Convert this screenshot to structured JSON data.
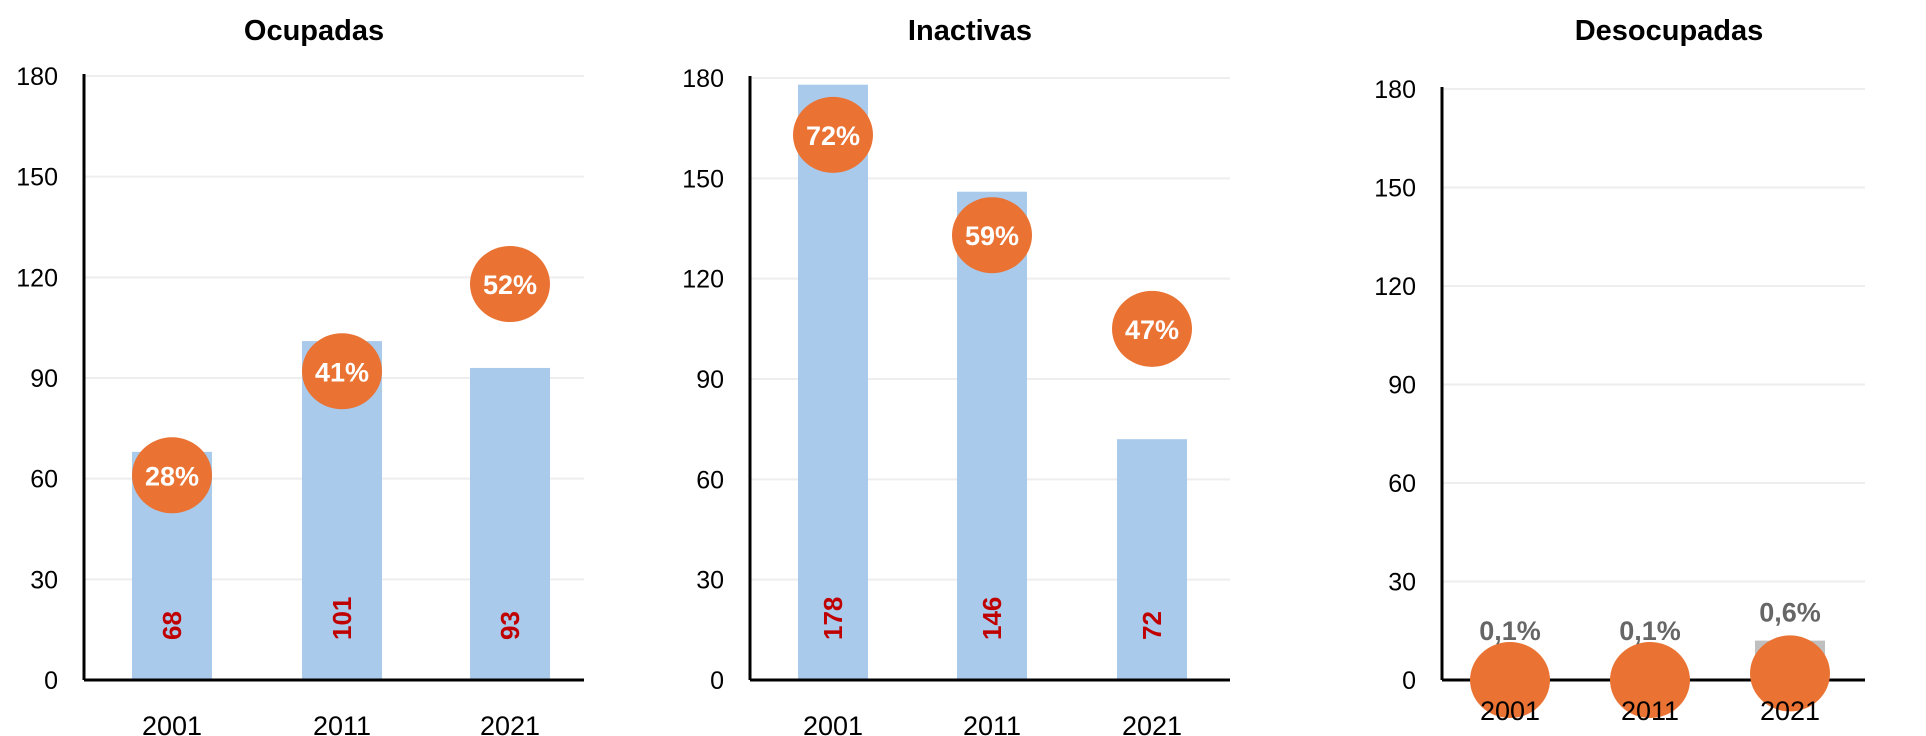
{
  "chart_data": [
    {
      "type": "bar",
      "title": "Ocupadas",
      "categories": [
        "2001",
        "2011",
        "2021"
      ],
      "values": [
        68,
        101,
        93
      ],
      "value_labels": [
        "68",
        "101",
        "93"
      ],
      "percent_labels": [
        "28%",
        "41%",
        "52%"
      ],
      "percent_marker_y": [
        61,
        92,
        118
      ],
      "percent_label_placement": "inside",
      "ylim": [
        0,
        180
      ],
      "yticks": [
        "0",
        "30",
        "60",
        "90",
        "120",
        "150",
        "180"
      ],
      "bar_color": "#a9caeb",
      "grid": true
    },
    {
      "type": "bar",
      "title": "Inactivas",
      "categories": [
        "2001",
        "2011",
        "2021"
      ],
      "values": [
        178,
        146,
        72
      ],
      "value_labels": [
        "178",
        "146",
        "72"
      ],
      "percent_labels": [
        "72%",
        "59%",
        "47%"
      ],
      "percent_marker_y": [
        163,
        133,
        105
      ],
      "percent_label_placement": "inside",
      "ylim": [
        0,
        180
      ],
      "yticks": [
        "0",
        "30",
        "60",
        "90",
        "120",
        "150",
        "180"
      ],
      "bar_color": "#a9caeb",
      "grid": true
    },
    {
      "type": "bar",
      "title": "Desocupadas",
      "categories": [
        "2001",
        "2011",
        "2021"
      ],
      "values": [
        0,
        0,
        12
      ],
      "value_labels": [],
      "percent_labels": [
        "0,1%",
        "0,1%",
        "0,6%"
      ],
      "percent_marker_y": [
        0,
        0,
        2
      ],
      "percent_label_placement": "above",
      "ylim": [
        0,
        180
      ],
      "yticks": [
        "0",
        "30",
        "60",
        "90",
        "120",
        "150",
        "180"
      ],
      "bar_color": "#bfbfbf",
      "grid": true
    }
  ],
  "colors": {
    "marker": "#ea7233",
    "value_label": "#c00000",
    "grid": "#eeeeee",
    "axis": "#000000"
  }
}
